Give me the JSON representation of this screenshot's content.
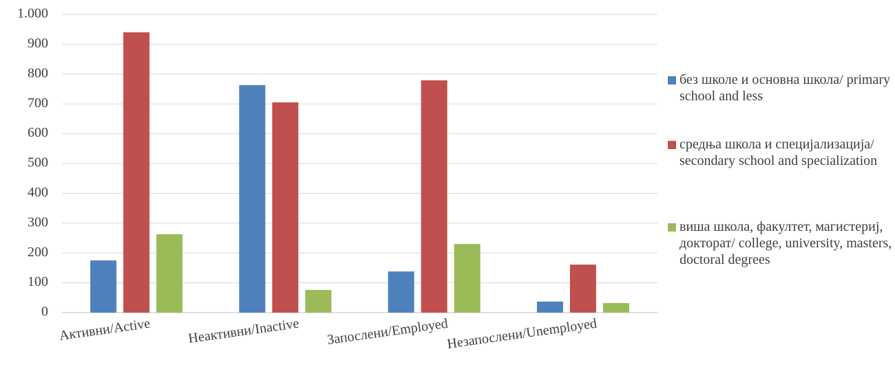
{
  "chart_data": {
    "type": "bar",
    "categories": [
      "Активни/Active",
      "Неактивни/Inactive",
      "Запослени/Employed",
      "Незапослени/Unemployed"
    ],
    "series": [
      {
        "name": "без школе и основна школа/ primary school and less",
        "color": "#4f81bd",
        "values": [
          175,
          763,
          138,
          37
        ]
      },
      {
        "name": "средња школа и специјализација/ secondary school and specialization",
        "color": "#c0504d",
        "values": [
          940,
          705,
          779,
          161
        ]
      },
      {
        "name": "виша школа, факултет, магистериј, докторат/ college, university, masters, doctoral degrees",
        "color": "#9bbb59",
        "values": [
          263,
          76,
          230,
          32
        ]
      }
    ],
    "ylim": [
      0,
      1000
    ],
    "yticks": [
      0,
      100,
      200,
      300,
      400,
      500,
      600,
      700,
      800,
      900,
      {
        "value": 1000,
        "label": "1.000"
      }
    ],
    "grid": true,
    "legend": "right"
  }
}
